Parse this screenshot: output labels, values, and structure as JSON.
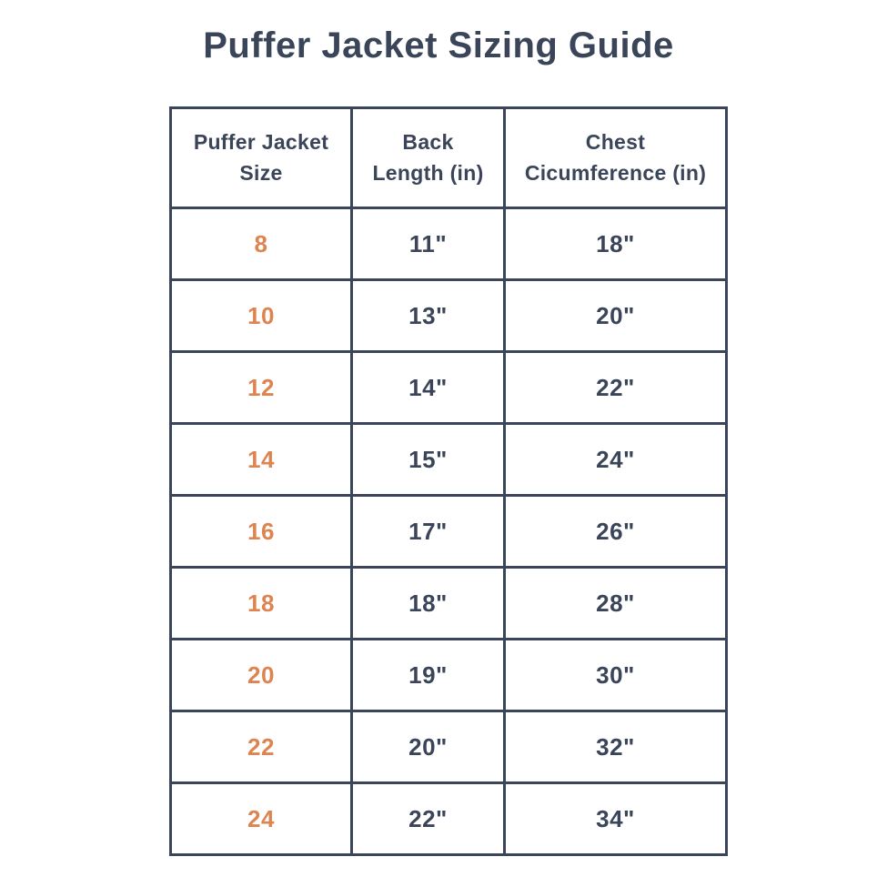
{
  "page": {
    "title": "Puffer Jacket Sizing Guide"
  },
  "colors": {
    "navy": "#3b4559",
    "orange": "#dd8450",
    "background": "#ffffff",
    "border": "#3b4559"
  },
  "table": {
    "header_lines": [
      "Puffer Jacket\nSize",
      "Back\nLength (in)",
      "Chest\nCicumference (in)"
    ]
  },
  "chart_data": {
    "type": "table",
    "title": "Puffer Jacket Sizing Guide",
    "columns": [
      "Puffer Jacket Size",
      "Back Length (in)",
      "Chest Cicumference (in)"
    ],
    "rows": [
      [
        "8",
        "11\"",
        "18\""
      ],
      [
        "10",
        "13\"",
        "20\""
      ],
      [
        "12",
        "14\"",
        "22\""
      ],
      [
        "14",
        "15\"",
        "24\""
      ],
      [
        "16",
        "17\"",
        "26\""
      ],
      [
        "18",
        "18\"",
        "28\""
      ],
      [
        "20",
        "19\"",
        "30\""
      ],
      [
        "22",
        "20\"",
        "32\""
      ],
      [
        "24",
        "22\"",
        "34\""
      ]
    ]
  }
}
